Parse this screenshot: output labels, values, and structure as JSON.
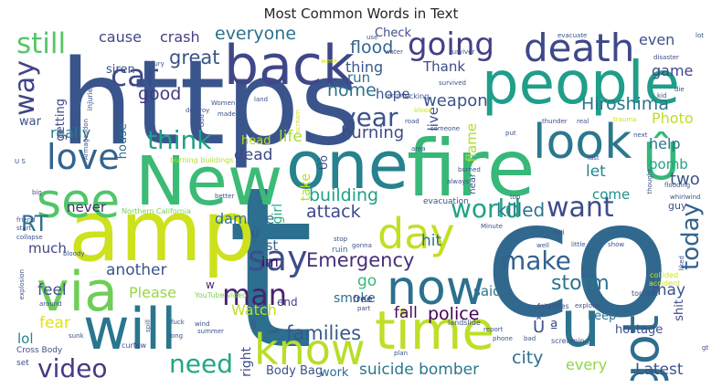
{
  "chart_data": {
    "type": "wordcloud",
    "title": "Most Common Words in Text",
    "background": "#ffffff",
    "colormap": "viridis",
    "words": [
      {
        "text": "t",
        "weight": 100,
        "color": "#2c6f8e"
      },
      {
        "text": "co",
        "weight": 95,
        "color": "#31688e"
      },
      {
        "text": "https",
        "weight": 90,
        "color": "#39558c"
      },
      {
        "text": "amp",
        "weight": 72,
        "color": "#cde11d"
      },
      {
        "text": "fire",
        "weight": 70,
        "color": "#37b878"
      },
      {
        "text": "New",
        "weight": 66,
        "color": "#3bbb75"
      },
      {
        "text": "one",
        "weight": 62,
        "color": "#26828e"
      },
      {
        "text": "people",
        "weight": 60,
        "color": "#1f9e89"
      },
      {
        "text": "will",
        "weight": 58,
        "color": "#2a768e"
      },
      {
        "text": "back",
        "weight": 57,
        "color": "#3f4788"
      },
      {
        "text": "via",
        "weight": 56,
        "color": "#6ece58"
      },
      {
        "text": "time",
        "weight": 55,
        "color": "#bddf26"
      },
      {
        "text": "Û",
        "weight": 54,
        "color": "#35b779"
      },
      {
        "text": "got",
        "weight": 53,
        "color": "#2e6e8e"
      },
      {
        "text": "now",
        "weight": 52,
        "color": "#2d708e"
      },
      {
        "text": "look",
        "weight": 51,
        "color": "#2a788e"
      },
      {
        "text": "know",
        "weight": 50,
        "color": "#b8de29"
      },
      {
        "text": "u",
        "weight": 50,
        "color": "#2c728e"
      },
      {
        "text": "see",
        "weight": 49,
        "color": "#52c569"
      },
      {
        "text": "death",
        "weight": 48,
        "color": "#3e4989"
      },
      {
        "text": "day",
        "weight": 47,
        "color": "#c2df23"
      },
      {
        "text": "say",
        "weight": 42,
        "color": "#3d4d8a"
      },
      {
        "text": "love",
        "weight": 40,
        "color": "#32648e"
      },
      {
        "text": "going",
        "weight": 39,
        "color": "#424086"
      },
      {
        "text": "car",
        "weight": 39,
        "color": "#3e4a89"
      },
      {
        "text": "man",
        "weight": 38,
        "color": "#482173"
      },
      {
        "text": "still",
        "weight": 37,
        "color": "#56c667"
      },
      {
        "text": "way",
        "weight": 37,
        "color": "#414487"
      },
      {
        "text": "make",
        "weight": 36,
        "color": "#34618d"
      },
      {
        "text": "year",
        "weight": 35,
        "color": "#3b528b"
      },
      {
        "text": "world",
        "weight": 34,
        "color": "#20a386"
      },
      {
        "text": "want",
        "weight": 34,
        "color": "#3e4c8a"
      },
      {
        "text": "video",
        "weight": 33,
        "color": "#443a83"
      },
      {
        "text": "need",
        "weight": 33,
        "color": "#22a785"
      },
      {
        "text": "think",
        "weight": 32,
        "color": "#1f9f88"
      },
      {
        "text": "today",
        "weight": 31,
        "color": "#33638d"
      },
      {
        "text": "RT",
        "weight": 30,
        "color": "#2e6f8e"
      },
      {
        "text": "storm",
        "weight": 30,
        "color": "#2b748e"
      },
      {
        "text": "Emergency",
        "weight": 29,
        "color": "#472d7b"
      },
      {
        "text": "great",
        "weight": 28,
        "color": "#3b528b"
      },
      {
        "text": "everyone",
        "weight": 27,
        "color": "#2c718e"
      },
      {
        "text": "flood",
        "weight": 26,
        "color": "#32648e"
      },
      {
        "text": "Hiroshima",
        "weight": 26,
        "color": "#2a788e"
      },
      {
        "text": "weapon",
        "weight": 25,
        "color": "#3a548c"
      },
      {
        "text": "killed",
        "weight": 25,
        "color": "#2a778e"
      },
      {
        "text": "building",
        "weight": 25,
        "color": "#1fa187"
      },
      {
        "text": "attack",
        "weight": 24,
        "color": "#3f4889"
      },
      {
        "text": "suicide bomber",
        "weight": 24,
        "color": "#2b758e"
      },
      {
        "text": "families",
        "weight": 24,
        "color": "#38598c"
      },
      {
        "text": "police",
        "weight": 24,
        "color": "#440154"
      },
      {
        "text": "burning",
        "weight": 23,
        "color": "#3e4a89"
      },
      {
        "text": "home",
        "weight": 23,
        "color": "#2d718e"
      },
      {
        "text": "life",
        "weight": 23,
        "color": "#a5db36"
      },
      {
        "text": "city",
        "weight": 23,
        "color": "#2c718e"
      },
      {
        "text": "Latest",
        "weight": 22,
        "color": "#3b528b"
      },
      {
        "text": "good",
        "weight": 22,
        "color": "#443983"
      },
      {
        "text": "cause",
        "weight": 21,
        "color": "#3f4788"
      },
      {
        "text": "crash",
        "weight": 21,
        "color": "#433e85"
      },
      {
        "text": "hit",
        "weight": 21,
        "color": "#2d708e"
      },
      {
        "text": "Watch",
        "weight": 21,
        "color": "#bddf26"
      },
      {
        "text": "fall",
        "weight": 21,
        "color": "#46075a"
      },
      {
        "text": "go",
        "weight": 21,
        "color": "#37b878"
      },
      {
        "text": "Please",
        "weight": 20,
        "color": "#95d840"
      },
      {
        "text": "another",
        "weight": 20,
        "color": "#3a548c"
      },
      {
        "text": "feel",
        "weight": 20,
        "color": "#3b528b"
      },
      {
        "text": "fear",
        "weight": 20,
        "color": "#dde318"
      },
      {
        "text": "dead",
        "weight": 20,
        "color": "#3e4989"
      },
      {
        "text": "damage",
        "weight": 19,
        "color": "#2c718e"
      },
      {
        "text": "first",
        "weight": 19,
        "color": "#31688e"
      },
      {
        "text": "even",
        "weight": 19,
        "color": "#3b528b"
      },
      {
        "text": "game",
        "weight": 18,
        "color": "#3f4788"
      },
      {
        "text": "Thank",
        "weight": 18,
        "color": "#3e4a89"
      },
      {
        "text": "help",
        "weight": 18,
        "color": "#2a788e"
      },
      {
        "text": "bomb",
        "weight": 18,
        "color": "#20a486"
      },
      {
        "text": "two",
        "weight": 18,
        "color": "#3b528b"
      },
      {
        "text": "let",
        "weight": 18,
        "color": "#25848e"
      },
      {
        "text": "come",
        "weight": 18,
        "color": "#21918c"
      },
      {
        "text": "may",
        "weight": 18,
        "color": "#3b528b"
      },
      {
        "text": "really",
        "weight": 17,
        "color": "#2a788e"
      },
      {
        "text": "thing",
        "weight": 17,
        "color": "#38588c"
      },
      {
        "text": "Photo",
        "weight": 17,
        "color": "#bddf26"
      },
      {
        "text": "hope",
        "weight": 16,
        "color": "#3b528b"
      },
      {
        "text": "run",
        "weight": 16,
        "color": "#2c728e"
      },
      {
        "text": "Check",
        "weight": 16,
        "color": "#3d4e8a"
      },
      {
        "text": "said",
        "weight": 16,
        "color": "#2c718e"
      },
      {
        "text": "every",
        "weight": 16,
        "color": "#8fd744"
      },
      {
        "text": "much",
        "weight": 16,
        "color": "#3f4788"
      },
      {
        "text": "never",
        "weight": 16,
        "color": "#472c7a"
      },
      {
        "text": "im",
        "weight": 16,
        "color": "#440154"
      },
      {
        "text": "smoke",
        "weight": 15,
        "color": "#2e6d8e"
      },
      {
        "text": "lol",
        "weight": 15,
        "color": "#24868e"
      },
      {
        "text": "keep",
        "weight": 14,
        "color": "#2c728e"
      },
      {
        "text": "hostage",
        "weight": 14,
        "color": "#3b528b"
      },
      {
        "text": "live",
        "weight": 14,
        "color": "#3b528b"
      },
      {
        "text": "flame",
        "weight": 14,
        "color": "#addc30"
      },
      {
        "text": "house",
        "weight": 14,
        "color": "#2d708e"
      },
      {
        "text": "siren",
        "weight": 14,
        "color": "#3b528b"
      },
      {
        "text": "war",
        "weight": 14,
        "color": "#3b528b"
      },
      {
        "text": "getting",
        "weight": 13,
        "color": "#3e4989"
      },
      {
        "text": "right",
        "weight": 13,
        "color": "#3e4a89"
      },
      {
        "text": "take",
        "weight": 13,
        "color": "#b5de2b"
      },
      {
        "text": "girl",
        "weight": 13,
        "color": "#25ab82"
      },
      {
        "text": "Body Bag",
        "weight": 13,
        "color": "#3b528b"
      },
      {
        "text": "work",
        "weight": 13,
        "color": "#31688e"
      },
      {
        "text": "head",
        "weight": 13,
        "color": "#b8de29"
      },
      {
        "text": "shit",
        "weight": 12,
        "color": "#3e4a89"
      },
      {
        "text": "end",
        "weight": 12,
        "color": "#414487"
      },
      {
        "text": "free",
        "weight": 12,
        "color": "#443a83"
      },
      {
        "text": "Û ª",
        "weight": 18,
        "color": "#3b528b"
      },
      {
        "text": "Ûò",
        "weight": 11,
        "color": "#3e4a89"
      },
      {
        "text": "Û",
        "weight": 11,
        "color": "#3b528b"
      },
      {
        "text": "w",
        "weight": 12,
        "color": "#482878"
      },
      {
        "text": "guy",
        "weight": 11,
        "color": "#3b528b"
      },
      {
        "text": "near",
        "weight": 10,
        "color": "#3b528b"
      },
      {
        "text": "ruin",
        "weight": 9,
        "color": "#2c728e"
      },
      {
        "text": "evacuation",
        "weight": 9,
        "color": "#3b528b"
      },
      {
        "text": "Cross Body",
        "weight": 9,
        "color": "#3b528b"
      },
      {
        "text": "set",
        "weight": 9,
        "color": "#3b528b"
      },
      {
        "text": "curfew",
        "weight": 8,
        "color": "#3b528b"
      },
      {
        "text": "Northern California",
        "weight": 8,
        "color": "#7ad151"
      },
      {
        "text": "YouTube video",
        "weight": 8,
        "color": "#7ad151"
      },
      {
        "text": "burning buildings",
        "weight": 8,
        "color": "#b5de2b"
      },
      {
        "text": "fatalities",
        "weight": 8,
        "color": "#3b528b"
      },
      {
        "text": "tonight",
        "weight": 8,
        "color": "#3b528b"
      },
      {
        "text": "accident",
        "weight": 8,
        "color": "#d2e21b"
      },
      {
        "text": "landslide",
        "weight": 8,
        "color": "#3b528b"
      },
      {
        "text": "screaming",
        "weight": 8,
        "color": "#3b528b"
      },
      {
        "text": "collided",
        "weight": 8,
        "color": "#d2e21b"
      },
      {
        "text": "injuries",
        "weight": 8,
        "color": "#3b528b"
      },
      {
        "text": "Armageddon",
        "weight": 7,
        "color": "#3b528b"
      },
      {
        "text": "evacuate",
        "weight": 7,
        "color": "#3b528b"
      },
      {
        "text": "disaster",
        "weight": 7,
        "color": "#3b528b"
      },
      {
        "text": "lot",
        "weight": 7,
        "color": "#3b528b"
      },
      {
        "text": "use",
        "weight": 7,
        "color": "#3b528b"
      },
      {
        "text": "water",
        "weight": 7,
        "color": "#3b528b"
      },
      {
        "text": "survivor",
        "weight": 7,
        "color": "#3b528b"
      },
      {
        "text": "survived",
        "weight": 7,
        "color": "#3b528b"
      },
      {
        "text": "terrorist",
        "weight": 7,
        "color": "#3b528b"
      },
      {
        "text": "fucking",
        "weight": 8,
        "color": "#3b528b"
      },
      {
        "text": "blood",
        "weight": 7,
        "color": "#d2e21b"
      },
      {
        "text": "road",
        "weight": 7,
        "color": "#3b528b"
      },
      {
        "text": "someone",
        "weight": 7,
        "color": "#3b528b"
      },
      {
        "text": "hour",
        "weight": 7,
        "color": "#3b528b"
      },
      {
        "text": "put",
        "weight": 7,
        "color": "#3b528b"
      },
      {
        "text": "thunder",
        "weight": 7,
        "color": "#3b528b"
      },
      {
        "text": "real",
        "weight": 7,
        "color": "#3b528b"
      },
      {
        "text": "trauma",
        "weight": 7,
        "color": "#d2e21b"
      },
      {
        "text": "kid",
        "weight": 7,
        "color": "#3b528b"
      },
      {
        "text": "die",
        "weight": 7,
        "color": "#3b528b"
      },
      {
        "text": "next",
        "weight": 7,
        "color": "#3b528b"
      },
      {
        "text": "last",
        "weight": 7,
        "color": "#3b528b"
      },
      {
        "text": "thought",
        "weight": 7,
        "color": "#3b528b"
      },
      {
        "text": "flooding",
        "weight": 7,
        "color": "#3b528b"
      },
      {
        "text": "whirlwind",
        "weight": 7,
        "color": "#3b528b"
      },
      {
        "text": "top",
        "weight": 7,
        "color": "#3b528b"
      },
      {
        "text": "Minute",
        "weight": 7,
        "color": "#3b528b"
      },
      {
        "text": "hail",
        "weight": 7,
        "color": "#3b528b"
      },
      {
        "text": "little",
        "weight": 7,
        "color": "#3b528b"
      },
      {
        "text": "show",
        "weight": 7,
        "color": "#3b528b"
      },
      {
        "text": "liked",
        "weight": 7,
        "color": "#3b528b"
      },
      {
        "text": "explode",
        "weight": 7,
        "color": "#3b528b"
      },
      {
        "text": "report",
        "weight": 7,
        "color": "#3b528b"
      },
      {
        "text": "phone",
        "weight": 7,
        "color": "#3b528b"
      },
      {
        "text": "bad",
        "weight": 7,
        "color": "#3b528b"
      },
      {
        "text": "plan",
        "weight": 7,
        "color": "#3b528b"
      },
      {
        "text": "Update",
        "weight": 7,
        "color": "#d2e21b"
      },
      {
        "text": "summer",
        "weight": 7,
        "color": "#3b528b"
      },
      {
        "text": "call",
        "weight": 7,
        "color": "#3b528b"
      },
      {
        "text": "job",
        "weight": 7,
        "color": "#3b528b"
      },
      {
        "text": "rain",
        "weight": 7,
        "color": "#3b528b"
      },
      {
        "text": "wind",
        "weight": 7,
        "color": "#3b528b"
      },
      {
        "text": "fuck",
        "weight": 7,
        "color": "#3b528b"
      },
      {
        "text": "long",
        "weight": 7,
        "color": "#3b528b"
      },
      {
        "text": "bloody",
        "weight": 7,
        "color": "#3b528b"
      },
      {
        "text": "sunk",
        "weight": 7,
        "color": "#3b528b"
      },
      {
        "text": "around",
        "weight": 7,
        "color": "#3b528b"
      },
      {
        "text": "collapse",
        "weight": 7,
        "color": "#3b528b"
      },
      {
        "text": "friend",
        "weight": 7,
        "color": "#3b528b"
      },
      {
        "text": "start",
        "weight": 7,
        "color": "#3b528b"
      },
      {
        "text": "better",
        "weight": 7,
        "color": "#3b528b"
      },
      {
        "text": "big",
        "weight": 7,
        "color": "#3b528b"
      },
      {
        "text": "U S",
        "weight": 7,
        "color": "#3b528b"
      },
      {
        "text": "made",
        "weight": 7,
        "color": "#3b528b"
      },
      {
        "text": "destroy",
        "weight": 7,
        "color": "#3b528b"
      },
      {
        "text": "land",
        "weight": 7,
        "color": "#3b528b"
      },
      {
        "text": "Women",
        "weight": 7,
        "color": "#3b528b"
      },
      {
        "text": "God",
        "weight": 7,
        "color": "#3b528b"
      },
      {
        "text": "injury",
        "weight": 7,
        "color": "#3b528b"
      },
      {
        "text": "scream",
        "weight": 7,
        "color": "#d2e21b"
      },
      {
        "text": "week",
        "weight": 7,
        "color": "#d2e21b"
      },
      {
        "text": "burned",
        "weight": 7,
        "color": "#3b528b"
      },
      {
        "text": "area",
        "weight": 7,
        "color": "#3b528b"
      },
      {
        "text": "always",
        "weight": 7,
        "color": "#3b528b"
      },
      {
        "text": "part",
        "weight": 7,
        "color": "#3b528b"
      },
      {
        "text": "stop",
        "weight": 7,
        "color": "#3b528b"
      },
      {
        "text": "gonna",
        "weight": 7,
        "color": "#3b528b"
      },
      {
        "text": "well",
        "weight": 7,
        "color": "#3b528b"
      },
      {
        "text": "explosion",
        "weight": 7,
        "color": "#3b528b"
      },
      {
        "text": "spill",
        "weight": 7,
        "color": "#3b528b"
      },
      {
        "text": "gt",
        "weight": 7,
        "color": "#3b528b"
      }
    ]
  }
}
